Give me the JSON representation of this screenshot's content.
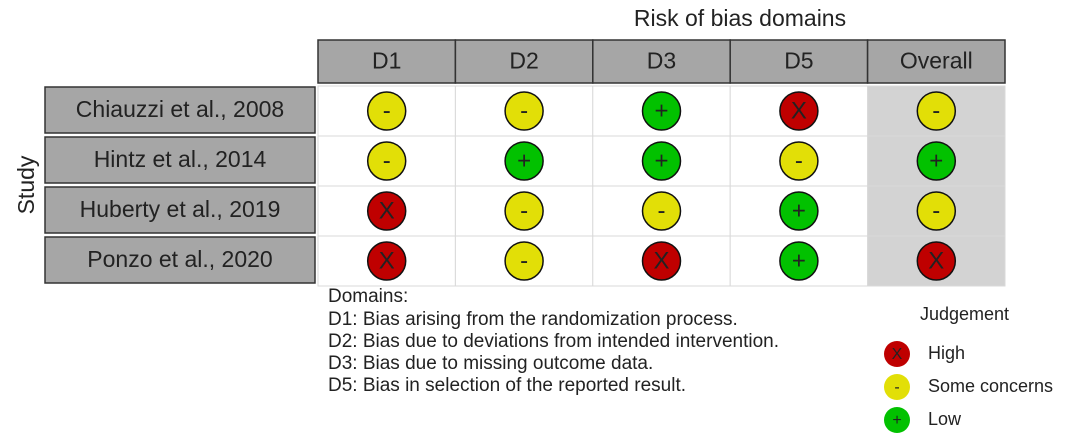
{
  "title": "Risk of bias domains",
  "y_label": "Study",
  "columns": [
    "D1",
    "D2",
    "D3",
    "D5",
    "Overall"
  ],
  "rows": [
    {
      "study": "Chiauzzi et al., 2008",
      "judgements": [
        "-",
        "-",
        "+",
        "X",
        "-"
      ]
    },
    {
      "study": "Hintz et al., 2014",
      "judgements": [
        "-",
        "+",
        "+",
        "-",
        "+"
      ]
    },
    {
      "study": "Huberty et al., 2019",
      "judgements": [
        "X",
        "-",
        "-",
        "+",
        "-"
      ]
    },
    {
      "study": "Ponzo et al., 2020",
      "judgements": [
        "X",
        "-",
        "X",
        "+",
        "X"
      ]
    }
  ],
  "domains": {
    "heading": "Domains:",
    "lines": [
      "D1: Bias arising from the randomization process.",
      "D2: Bias due to deviations from intended intervention.",
      "D3: Bias due to missing outcome data.",
      "D5: Bias in selection of the reported result."
    ]
  },
  "legend": {
    "title": "Judgement",
    "items": [
      {
        "symbol": "X",
        "label": "High",
        "color": "#bf0000"
      },
      {
        "symbol": "-",
        "label": "Some concerns",
        "color": "#e2df07"
      },
      {
        "symbol": "+",
        "label": "Low",
        "color": "#02c100"
      }
    ]
  }
}
